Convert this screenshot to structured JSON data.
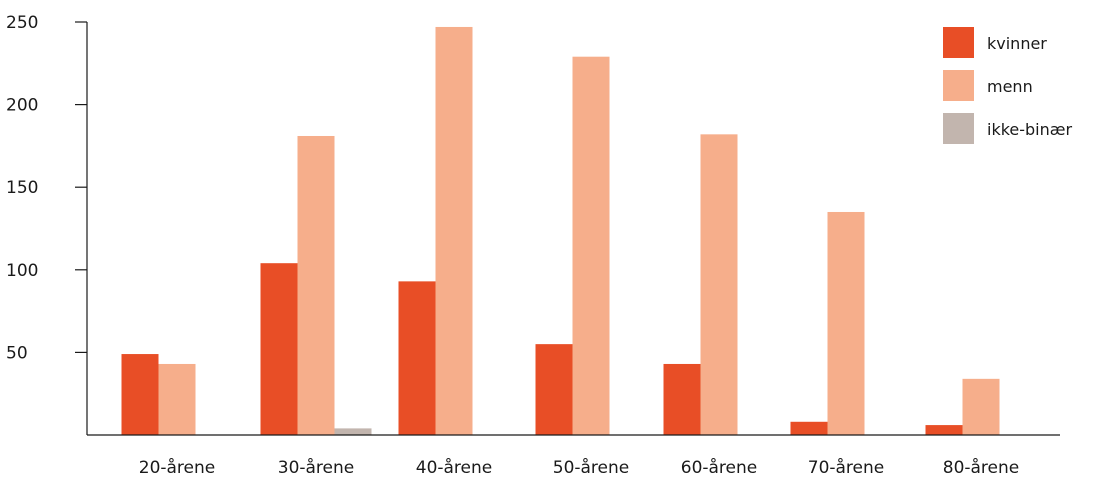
{
  "chart_data": {
    "type": "bar",
    "title": "",
    "xlabel": "",
    "ylabel": "",
    "ylim": [
      0,
      250
    ],
    "yticks": [
      50,
      100,
      150,
      200,
      250
    ],
    "ytick_labels": [
      "50",
      "100",
      "150",
      "200",
      "250"
    ],
    "grid": false,
    "legend_position": "top-right",
    "categories": [
      "20-årene",
      "30-årene",
      "40-årene",
      "50-årene",
      "60-årene",
      "70-årene",
      "80-årene"
    ],
    "series": [
      {
        "name": "kvinner",
        "color": "#e84e26",
        "values": [
          49,
          104,
          93,
          55,
          43,
          8,
          6
        ]
      },
      {
        "name": "menn",
        "color": "#f6ae8b",
        "values": [
          43,
          181,
          247,
          229,
          182,
          135,
          34
        ]
      },
      {
        "name": "ikke-binær",
        "color": "#c2b5ae",
        "values": [
          0,
          4,
          0,
          0,
          0,
          0,
          0
        ]
      }
    ]
  }
}
